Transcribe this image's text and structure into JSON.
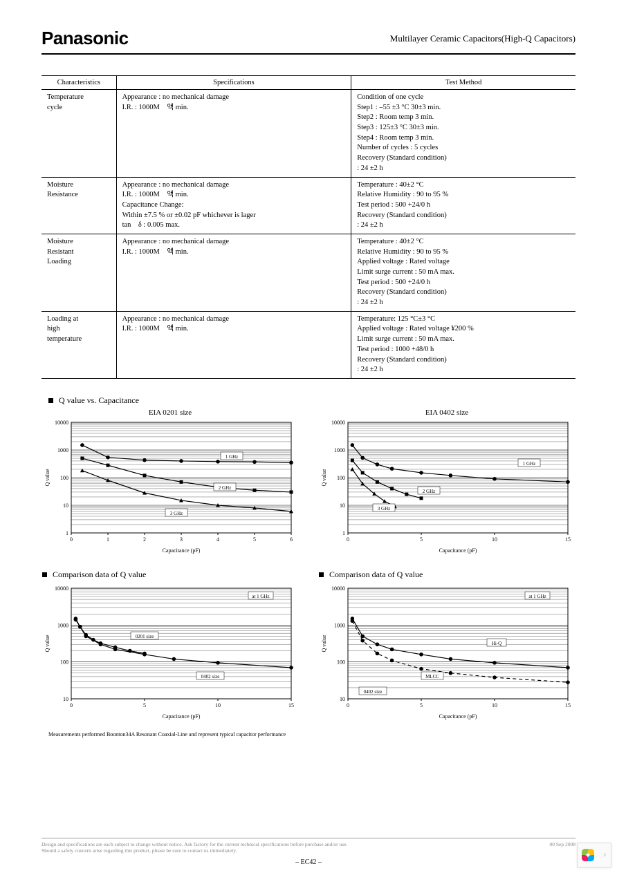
{
  "header": {
    "brand": "Panasonic",
    "doc_title": "Multilayer Ceramic Capacitors(High-Q Capacitors)"
  },
  "table": {
    "headers": [
      "Characteristics",
      "Specifications",
      "Test Method"
    ],
    "rows": [
      {
        "char": "Temperature\ncycle",
        "spec": "Appearance : no mechanical damage\nI.R. : 1000M　액  min.",
        "test": "Condition of one cycle\nStep1 : –55 ±3 °C                30±3 min.\nStep2 : Room temp                   3 min.\nStep3 : 125±3 °C                30±3 min.\nStep4 : Room temp                   3 min.\nNumber of  cycles : 5 cycles\nRecovery (Standard condition)\n                         : 24 ±2 h"
      },
      {
        "char": "Moisture\nResistance",
        "spec": "Appearance : no mechanical damage\nI.R. : 1000M　액  min.\nCapacitance Change:\n   Within  ±7.5  %  or  ±0.02 pF whichever is lager\ntan　δ : 0.005 max.",
        "test": "Temperature : 40±2 °C\nRelative Humidity  :  90  to  95  %\nTest period : 500 +24/0 h\nRecovery (Standard condition)\n                         : 24 ±2 h"
      },
      {
        "char": "Moisture\nResistant\nLoading",
        "spec": "Appearance : no mechanical  damage\nI.R. : 1000M　액  min.",
        "test": "Temperature : 40±2 °C\nRelative Humidity  :  90  to  95  %\nApplied voltage : Rated voltage\nLimit surge current : 50 mA max.\nTest period : 500 +24/0 h\nRecovery (Standard condition)\n                         : 24 ±2 h"
      },
      {
        "char": "Loading at\nhigh\ntemperature",
        "spec": "Appearance : no mechanical damage\nI.R. : 1000M　액  min.",
        "test": "Temperature: 125 °C±3 °C\nApplied voltage  : Rated voltage                ¥200  %\nLimit surge current : 50 mA max.\nTest period : 1000 +48/0 h\nRecovery (Standard condition)\n                         : 24 ±2 h"
      }
    ]
  },
  "section1_title": "Q value vs. Capacitance",
  "section2_title": "Comparison data of Q value",
  "chart_a": {
    "title": "EIA 0201 size",
    "xlabel": "Capacitance (pF)",
    "ylabel": "Q value",
    "xlim": [
      0,
      6
    ],
    "xticks": [
      0,
      1,
      2,
      3,
      4,
      5,
      6
    ],
    "ylim_log": [
      1,
      10000
    ],
    "yticks": [
      1,
      10,
      100,
      1000,
      10000
    ],
    "background": "#ffffff",
    "grid": "#000000",
    "series": [
      {
        "label": "1 GHz",
        "marker": "circle",
        "color": "#000",
        "points": [
          [
            0.3,
            1500
          ],
          [
            1,
            540
          ],
          [
            2,
            430
          ],
          [
            3,
            400
          ],
          [
            4,
            380
          ],
          [
            5,
            370
          ],
          [
            6,
            350
          ]
        ]
      },
      {
        "label": "2 GHz",
        "marker": "square",
        "color": "#000",
        "points": [
          [
            0.3,
            500
          ],
          [
            1,
            280
          ],
          [
            2,
            120
          ],
          [
            3,
            70
          ],
          [
            4,
            45
          ],
          [
            5,
            35
          ],
          [
            6,
            30
          ]
        ]
      },
      {
        "label": "3 GHz",
        "marker": "triangle",
        "color": "#000",
        "points": [
          [
            0.3,
            180
          ],
          [
            1,
            80
          ],
          [
            2,
            28
          ],
          [
            3,
            15
          ],
          [
            4,
            10
          ],
          [
            5,
            8
          ],
          [
            6,
            6
          ]
        ]
      }
    ]
  },
  "chart_b": {
    "title": "EIA 0402 size",
    "xlabel": "Capacitance (pF)",
    "ylabel": "Q value",
    "xlim": [
      0,
      15
    ],
    "xticks": [
      0,
      5,
      10,
      15
    ],
    "xticklabels": [
      "0",
      "5",
      "10",
      "15"
    ],
    "ylim_log": [
      1,
      10000
    ],
    "yticks": [
      1,
      10,
      100,
      1000,
      10000
    ],
    "background": "#ffffff",
    "grid": "#000000",
    "series": [
      {
        "label": "1 GHz",
        "marker": "circle",
        "color": "#000",
        "points": [
          [
            0.3,
            1500
          ],
          [
            1,
            520
          ],
          [
            2,
            300
          ],
          [
            3,
            210
          ],
          [
            5,
            150
          ],
          [
            7,
            120
          ],
          [
            10,
            90
          ],
          [
            15,
            70
          ]
        ]
      },
      {
        "label": "2 GHz",
        "marker": "square",
        "color": "#000",
        "points": [
          [
            0.3,
            420
          ],
          [
            1,
            150
          ],
          [
            2,
            70
          ],
          [
            3,
            40
          ],
          [
            4,
            25
          ],
          [
            5,
            18
          ]
        ]
      },
      {
        "label": "3 GHz",
        "marker": "triangle",
        "color": "#000",
        "points": [
          [
            0.3,
            200
          ],
          [
            1,
            60
          ],
          [
            1.8,
            26
          ],
          [
            2.5,
            14
          ],
          [
            3.2,
            9
          ]
        ]
      }
    ]
  },
  "chart_c": {
    "xlabel": "Capacitance (pF)",
    "ylabel": "Q value",
    "xlim": [
      0,
      15
    ],
    "xticks": [
      0,
      5,
      10,
      15
    ],
    "xticklabels": [
      "0",
      "5",
      "10",
      "15"
    ],
    "ylim_log": [
      10,
      10000
    ],
    "yticks": [
      10,
      100,
      1000,
      10000
    ],
    "labels": {
      "main": "at 1 GHz",
      "s1": "0201 size",
      "s2": "0402 size"
    },
    "series": [
      {
        "label": "0201 size",
        "marker": "circle",
        "color": "#000",
        "points": [
          [
            0.3,
            1500
          ],
          [
            0.6,
            900
          ],
          [
            1,
            540
          ],
          [
            1.5,
            400
          ],
          [
            2,
            320
          ],
          [
            3,
            250
          ],
          [
            4,
            200
          ],
          [
            5,
            170
          ]
        ]
      },
      {
        "label": "0402 size",
        "marker": "circle",
        "color": "#000",
        "points": [
          [
            0.3,
            1400
          ],
          [
            1,
            500
          ],
          [
            2,
            300
          ],
          [
            3,
            220
          ],
          [
            5,
            160
          ],
          [
            7,
            120
          ],
          [
            10,
            95
          ],
          [
            15,
            70
          ]
        ]
      }
    ]
  },
  "chart_d": {
    "xlabel": "Capacitance (pF)",
    "ylabel": "Q value",
    "xlim": [
      0,
      15
    ],
    "xticks": [
      0,
      5,
      10,
      15
    ],
    "xticklabels": [
      "0",
      "5",
      "10",
      "15"
    ],
    "ylim_log": [
      10,
      10000
    ],
    "yticks": [
      10,
      100,
      1000,
      10000
    ],
    "labels": {
      "main": "at 1 GHz",
      "s1": "Hi-Q",
      "s2": "MLCC",
      "s3": "0402 size"
    },
    "series": [
      {
        "label": "Hi-Q",
        "marker": "circle",
        "color": "#000",
        "dash": false,
        "points": [
          [
            0.3,
            1500
          ],
          [
            1,
            500
          ],
          [
            2,
            300
          ],
          [
            3,
            220
          ],
          [
            5,
            160
          ],
          [
            7,
            120
          ],
          [
            10,
            95
          ],
          [
            15,
            70
          ]
        ]
      },
      {
        "label": "MLCC",
        "marker": "circle",
        "color": "#000",
        "dash": true,
        "points": [
          [
            0.3,
            1300
          ],
          [
            1,
            380
          ],
          [
            2,
            170
          ],
          [
            3,
            110
          ],
          [
            5,
            65
          ],
          [
            7,
            50
          ],
          [
            10,
            38
          ],
          [
            15,
            28
          ]
        ]
      }
    ]
  },
  "measurement_note": "Measurements performed Boonton34A Resonant Coaxial-Line and represent typical capacitor performance",
  "footer": {
    "disclaimer": "Design and specifications are each subject to change without notice. Ask factory for the current technical specifications before purchase and/or use.\nShould a safety concern arise regarding this product, please be sure to contact us immediately.",
    "date": "00 Sep 2008",
    "page": "– EC42 –"
  },
  "widget": {
    "colors": [
      "#8bc34a",
      "#ffc107",
      "#03a9f4",
      "#e91e63"
    ]
  }
}
